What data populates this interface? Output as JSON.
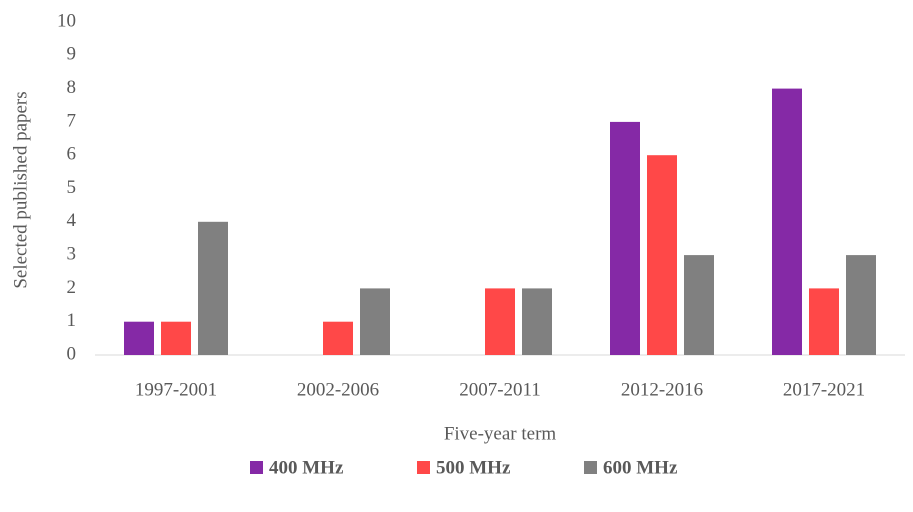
{
  "chart_data": {
    "type": "bar",
    "categories": [
      "1997-2001",
      "2002-2006",
      "2007-2011",
      "2012-2016",
      "2017-2021"
    ],
    "series": [
      {
        "name": "400 MHz",
        "color": "#8529a6",
        "values": [
          1,
          0,
          0,
          7,
          8
        ]
      },
      {
        "name": "500 MHz",
        "color": "#ff4848",
        "values": [
          1,
          1,
          2,
          6,
          2
        ]
      },
      {
        "name": "600 MHz",
        "color": "#808080",
        "values": [
          4,
          2,
          2,
          3,
          3
        ]
      }
    ],
    "xlabel": "Five-year term",
    "ylabel": "Selected published papers",
    "ylim": [
      0,
      10
    ],
    "yticks": [
      0,
      1,
      2,
      3,
      4,
      5,
      6,
      7,
      8,
      9,
      10
    ],
    "grid": false,
    "legend": "bottom"
  }
}
